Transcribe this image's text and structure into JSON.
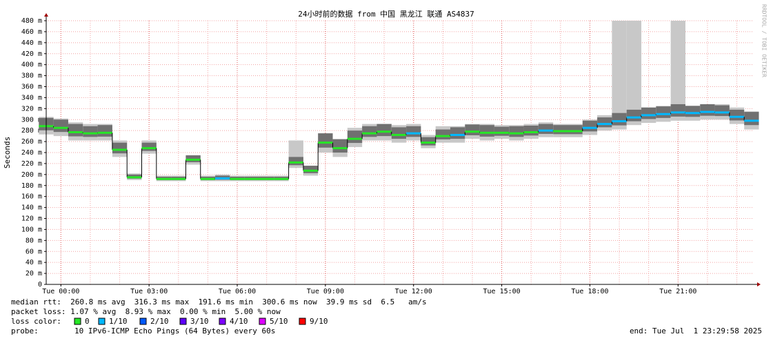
{
  "chart_data": {
    "type": "smoke",
    "title": "24小时前的数据 from 中国 黑龙江 联通 AS4837",
    "y_label": "Seconds",
    "side_text": "RRDTOOL / TOBI OETIKER",
    "xlim": [
      -0.5,
      23.55
    ],
    "xticks": [
      {
        "value": 0,
        "label": "Tue 00:00"
      },
      {
        "value": 3,
        "label": "Tue 03:00"
      },
      {
        "value": 6,
        "label": "Tue 06:00"
      },
      {
        "value": 9,
        "label": "Tue 09:00"
      },
      {
        "value": 12,
        "label": "Tue 12:00"
      },
      {
        "value": 15,
        "label": "Tue 15:00"
      },
      {
        "value": 18,
        "label": "Tue 18:00"
      },
      {
        "value": 21,
        "label": "Tue 21:00"
      }
    ],
    "ylim": [
      0,
      480
    ],
    "yticks": [
      {
        "value": 0,
        "label": "0"
      },
      {
        "value": 20,
        "label": "20 m"
      },
      {
        "value": 40,
        "label": "40 m"
      },
      {
        "value": 60,
        "label": "60 m"
      },
      {
        "value": 80,
        "label": "80 m"
      },
      {
        "value": 100,
        "label": "100 m"
      },
      {
        "value": 120,
        "label": "120 m"
      },
      {
        "value": 140,
        "label": "140 m"
      },
      {
        "value": 160,
        "label": "160 m"
      },
      {
        "value": 180,
        "label": "180 m"
      },
      {
        "value": 200,
        "label": "200 m"
      },
      {
        "value": 220,
        "label": "220 m"
      },
      {
        "value": 240,
        "label": "240 m"
      },
      {
        "value": 260,
        "label": "260 m"
      },
      {
        "value": 280,
        "label": "280 m"
      },
      {
        "value": 300,
        "label": "300 m"
      },
      {
        "value": 320,
        "label": "320 m"
      },
      {
        "value": 340,
        "label": "340 m"
      },
      {
        "value": 360,
        "label": "360 m"
      },
      {
        "value": 380,
        "label": "380 m"
      },
      {
        "value": 400,
        "label": "400 m"
      },
      {
        "value": 420,
        "label": "420 m"
      },
      {
        "value": 440,
        "label": "440 m"
      },
      {
        "value": 460,
        "label": "460 m"
      },
      {
        "value": 480,
        "label": "480 m"
      }
    ],
    "grid": true,
    "x": [
      -0.5,
      0,
      0.5,
      1,
      1.5,
      2,
      2.5,
      3,
      3.5,
      4,
      4.5,
      5,
      5.5,
      6,
      6.5,
      7,
      7.5,
      8,
      8.5,
      9,
      9.5,
      10,
      10.5,
      11,
      11.5,
      12,
      12.5,
      13,
      13.5,
      14,
      14.5,
      15,
      15.5,
      16,
      16.5,
      17,
      17.5,
      18,
      18.5,
      19,
      19.5,
      20,
      20.5,
      21,
      21.5,
      22,
      22.5,
      23,
      23.5
    ],
    "median": [
      288,
      285,
      277,
      275,
      276,
      245,
      195,
      248,
      192,
      192,
      227,
      192,
      193,
      192,
      192,
      192,
      192,
      222,
      207,
      258,
      248,
      265,
      275,
      278,
      272,
      275,
      258,
      270,
      272,
      278,
      276,
      276,
      275,
      277,
      280,
      279,
      279,
      285,
      292,
      297,
      304,
      308,
      310,
      313,
      312,
      314,
      313,
      305,
      298
    ],
    "low": [
      273,
      270,
      262,
      262,
      262,
      232,
      190,
      238,
      188,
      188,
      218,
      188,
      188,
      188,
      188,
      188,
      188,
      212,
      198,
      240,
      232,
      250,
      262,
      262,
      258,
      262,
      248,
      258,
      258,
      265,
      262,
      265,
      262,
      265,
      268,
      268,
      268,
      272,
      280,
      282,
      290,
      294,
      296,
      298,
      298,
      300,
      300,
      292,
      282
    ],
    "high": [
      305,
      302,
      295,
      292,
      292,
      262,
      202,
      262,
      198,
      198,
      235,
      198,
      200,
      198,
      198,
      198,
      198,
      262,
      216,
      275,
      265,
      285,
      292,
      292,
      290,
      292,
      272,
      288,
      288,
      292,
      292,
      290,
      290,
      292,
      295,
      292,
      292,
      300,
      308,
      480,
      480,
      322,
      325,
      480,
      325,
      328,
      328,
      322,
      315
    ],
    "loss": [
      0,
      0,
      0,
      0,
      0,
      0,
      0,
      0,
      0,
      0,
      0,
      0,
      1,
      0,
      0,
      0,
      0,
      0,
      0,
      0,
      0,
      0,
      0,
      0,
      0,
      1,
      0,
      0,
      1,
      0,
      0,
      0,
      0,
      0,
      1,
      0,
      0,
      1,
      1,
      1,
      1,
      1,
      1,
      1,
      1,
      1,
      1,
      1,
      1
    ],
    "stats": [
      "median rtt:  260.8 ms avg  316.3 ms max  191.6 ms min  300.6 ms now  39.9 ms sd  6.5   am/s",
      "packet loss: 1.07 % avg  8.93 % max  0.00 % min  5.00 % now"
    ],
    "legend_title": "loss color:",
    "legend": [
      {
        "name": "0",
        "color": "#26e626"
      },
      {
        "name": "1/10",
        "color": "#00b8ff"
      },
      {
        "name": "2/10",
        "color": "#0059ff"
      },
      {
        "name": "3/10",
        "color": "#5e00ff"
      },
      {
        "name": "4/10",
        "color": "#7e00ff"
      },
      {
        "name": "5/10",
        "color": "#dd00ff"
      },
      {
        "name": "9/10",
        "color": "#ff0000"
      }
    ],
    "probe_label": "probe:",
    "probe": "10 IPv6-ICMP Echo Pings (64 Bytes) every 60s",
    "end": "end: Tue Jul  1 23:29:58 2025"
  }
}
